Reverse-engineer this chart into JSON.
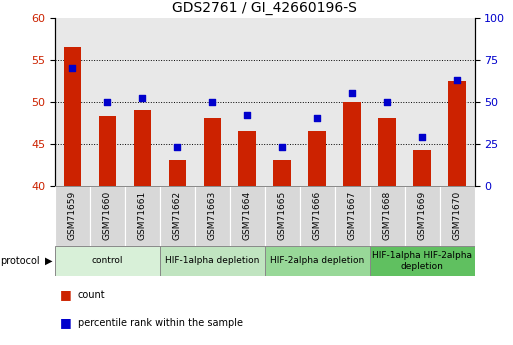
{
  "title": "GDS2761 / GI_42660196-S",
  "samples": [
    "GSM71659",
    "GSM71660",
    "GSM71661",
    "GSM71662",
    "GSM71663",
    "GSM71664",
    "GSM71665",
    "GSM71666",
    "GSM71667",
    "GSM71668",
    "GSM71669",
    "GSM71670"
  ],
  "bar_values": [
    56.5,
    48.3,
    49.0,
    43.0,
    48.0,
    46.5,
    43.0,
    46.5,
    50.0,
    48.0,
    44.2,
    52.5
  ],
  "dot_values_right": [
    70.0,
    50.0,
    52.0,
    23.0,
    49.5,
    42.0,
    23.0,
    40.0,
    55.0,
    50.0,
    29.0,
    63.0
  ],
  "ylim_left": [
    40,
    60
  ],
  "ylim_right": [
    0,
    100
  ],
  "yticks_left": [
    40,
    45,
    50,
    55,
    60
  ],
  "yticks_right": [
    0,
    25,
    50,
    75,
    100
  ],
  "bar_color": "#cc2200",
  "dot_color": "#0000cc",
  "bar_width": 0.5,
  "groups": [
    {
      "label": "control",
      "start": 0,
      "end": 2,
      "color": "#d8f0d8"
    },
    {
      "label": "HIF-1alpha depletion",
      "start": 3,
      "end": 5,
      "color": "#c0e4c0"
    },
    {
      "label": "HIF-2alpha depletion",
      "start": 6,
      "end": 8,
      "color": "#98d898"
    },
    {
      "label": "HIF-1alpha HIF-2alpha\ndepletion",
      "start": 9,
      "end": 11,
      "color": "#60c060"
    }
  ],
  "legend_labels": [
    "count",
    "percentile rank within the sample"
  ],
  "protocol_label": "protocol",
  "plot_bg": "#e8e8e8",
  "sample_box_bg": "#d0d0d0",
  "title_fontsize": 10,
  "axis_fontsize": 8,
  "sample_fontsize": 6.5,
  "proto_fontsize": 6.5,
  "legend_fontsize": 7
}
